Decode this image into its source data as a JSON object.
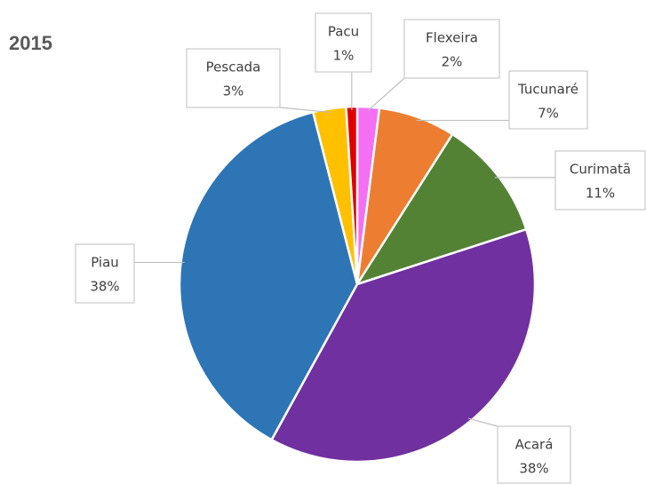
{
  "chart_data": {
    "type": "pie",
    "title": "2015",
    "categories": [
      "Flexeira",
      "Tucunaré",
      "Curimatã",
      "Acará",
      "Piau",
      "Pescada",
      "Pacu"
    ],
    "values": [
      2,
      7,
      11,
      38,
      38,
      3,
      1
    ],
    "value_labels": [
      "2%",
      "7%",
      "11%",
      "38%",
      "38%",
      "3%",
      "1%"
    ],
    "colors": [
      "#f46ff2",
      "#ed7d31",
      "#548235",
      "#7030a0",
      "#2e75b6",
      "#ffc000",
      "#e00000"
    ]
  }
}
